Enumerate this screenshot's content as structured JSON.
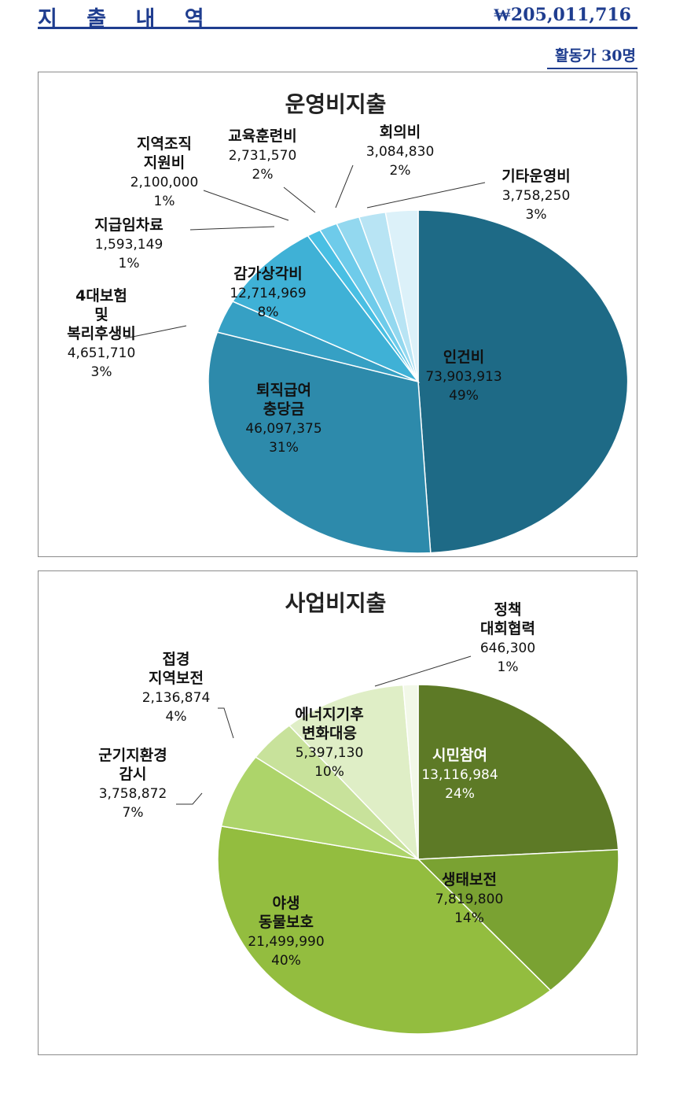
{
  "header": {
    "title": "지 출 내 역",
    "total": "₩205,011,716",
    "subtitle": "활동가 30명"
  },
  "chart_data": [
    {
      "type": "pie",
      "title": "운영비지출",
      "slices": [
        {
          "label": "인건비",
          "value": "73,903,913",
          "percent": "49%",
          "pct": 49.13,
          "color": "#1e6a86"
        },
        {
          "label": "퇴직급여 충당금",
          "value": "46,097,375",
          "percent": "31%",
          "pct": 30.65,
          "color": "#2d8aab"
        },
        {
          "label": "4대보험 및 복리후생비",
          "value": "4,651,710",
          "percent": "3%",
          "pct": 3.09,
          "color": "#36a0c4"
        },
        {
          "label": "감가상각비",
          "value": "12,714,969",
          "percent": "8%",
          "pct": 8.45,
          "color": "#3fb1d6"
        },
        {
          "label": "지급임차료",
          "value": "1,593,149",
          "percent": "1%",
          "pct": 1.06,
          "color": "#49bfe3"
        },
        {
          "label": "지역조직 지원비",
          "value": "2,100,000",
          "percent": "1%",
          "pct": 1.4,
          "color": "#6ecbea"
        },
        {
          "label": "교육훈련비",
          "value": "2,731,570",
          "percent": "2%",
          "pct": 1.82,
          "color": "#93d8ef"
        },
        {
          "label": "회의비",
          "value": "3,084,830",
          "percent": "2%",
          "pct": 2.05,
          "color": "#b8e4f4"
        },
        {
          "label": "기타운영비",
          "value": "3,758,250",
          "percent": "3%",
          "pct": 2.5,
          "color": "#dcf1f9"
        }
      ]
    },
    {
      "type": "pie",
      "title": "사업비지출",
      "slices": [
        {
          "label": "시민참여",
          "value": "13,116,984",
          "percent": "24%",
          "pct": 24.3,
          "color": "#5d7a26"
        },
        {
          "label": "생태보전",
          "value": "7,819,800",
          "percent": "14%",
          "pct": 14.5,
          "color": "#7aa232"
        },
        {
          "label": "야생 동물보호",
          "value": "21,499,990",
          "percent": "40%",
          "pct": 39.8,
          "color": "#93bd3f"
        },
        {
          "label": "군기지환경 감시",
          "value": "3,758,872",
          "percent": "7%",
          "pct": 6.96,
          "color": "#add46a"
        },
        {
          "label": "접경 지역보전",
          "value": "2,136,874",
          "percent": "4%",
          "pct": 3.96,
          "color": "#c8e29b"
        },
        {
          "label": "에너지기후 변화대응",
          "value": "5,397,130",
          "percent": "10%",
          "pct": 10.0,
          "color": "#dfeec6"
        },
        {
          "label": "정책 대회협력",
          "value": "646,300",
          "percent": "1%",
          "pct": 1.2,
          "color": "#f2f8e8"
        }
      ]
    }
  ]
}
